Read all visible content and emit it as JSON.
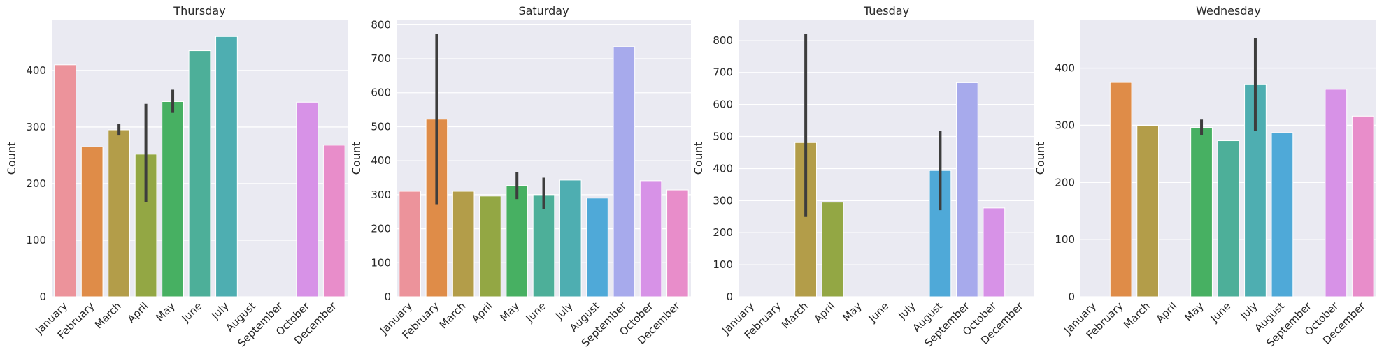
{
  "chart_data": [
    {
      "type": "bar",
      "title": "Thursday",
      "xlabel": "",
      "ylabel": "Count",
      "ylim": [
        0,
        490
      ],
      "yticks": [
        0,
        100,
        200,
        300,
        400
      ],
      "categories": [
        "January",
        "February",
        "March",
        "April",
        "May",
        "June",
        "July",
        "August",
        "September",
        "October",
        "December"
      ],
      "values": [
        410,
        265,
        295,
        252,
        345,
        435,
        460,
        null,
        null,
        344,
        268
      ],
      "error_bars": [
        null,
        null,
        [
          285,
          306
        ],
        [
          167,
          341
        ],
        [
          325,
          366
        ],
        null,
        null,
        null,
        null,
        null,
        null
      ],
      "grid": true
    },
    {
      "type": "bar",
      "title": "Saturday",
      "xlabel": "",
      "ylabel": "Count",
      "ylim": [
        0,
        815
      ],
      "yticks": [
        0,
        100,
        200,
        300,
        400,
        500,
        600,
        700,
        800
      ],
      "categories": [
        "January",
        "February",
        "March",
        "April",
        "May",
        "June",
        "July",
        "August",
        "September",
        "October",
        "December"
      ],
      "values": [
        310,
        522,
        310,
        296,
        327,
        300,
        343,
        290,
        735,
        341,
        314
      ],
      "error_bars": [
        null,
        [
          272,
          772
        ],
        null,
        null,
        [
          287,
          367
        ],
        [
          258,
          350
        ],
        null,
        null,
        null,
        null,
        null
      ],
      "grid": true
    },
    {
      "type": "bar",
      "title": "Tuesday",
      "xlabel": "",
      "ylabel": "Count",
      "ylim": [
        0,
        865
      ],
      "yticks": [
        0,
        100,
        200,
        300,
        400,
        500,
        600,
        700,
        800
      ],
      "categories": [
        "January",
        "February",
        "March",
        "April",
        "May",
        "June",
        "July",
        "August",
        "September",
        "October",
        "December"
      ],
      "values": [
        null,
        null,
        481,
        295,
        null,
        null,
        null,
        394,
        668,
        277,
        null
      ],
      "error_bars": [
        null,
        null,
        [
          249,
          820
        ],
        null,
        null,
        null,
        null,
        [
          270,
          518
        ],
        null,
        null,
        null
      ],
      "grid": true
    },
    {
      "type": "bar",
      "title": "Wednesday",
      "xlabel": "",
      "ylabel": "Count",
      "ylim": [
        0,
        485
      ],
      "yticks": [
        0,
        100,
        200,
        300,
        400
      ],
      "categories": [
        "January",
        "February",
        "March",
        "April",
        "May",
        "June",
        "July",
        "August",
        "September",
        "October",
        "December"
      ],
      "values": [
        null,
        375,
        299,
        null,
        296,
        273,
        371,
        287,
        null,
        363,
        316
      ],
      "error_bars": [
        null,
        null,
        null,
        null,
        [
          283,
          310
        ],
        null,
        [
          290,
          452
        ],
        null,
        null,
        null,
        null
      ],
      "grid": true
    }
  ],
  "colors": {
    "axes_background": "#eaeaf2",
    "gridline": "#ffffff",
    "error_bar": "#3d3d3d",
    "bars": [
      "#ec939b",
      "#df8c48",
      "#b39d49",
      "#93a744",
      "#47b062",
      "#4daf99",
      "#4eaeb1",
      "#4fa9d8",
      "#a7aaec",
      "#d792e7",
      "#e88dca"
    ]
  }
}
